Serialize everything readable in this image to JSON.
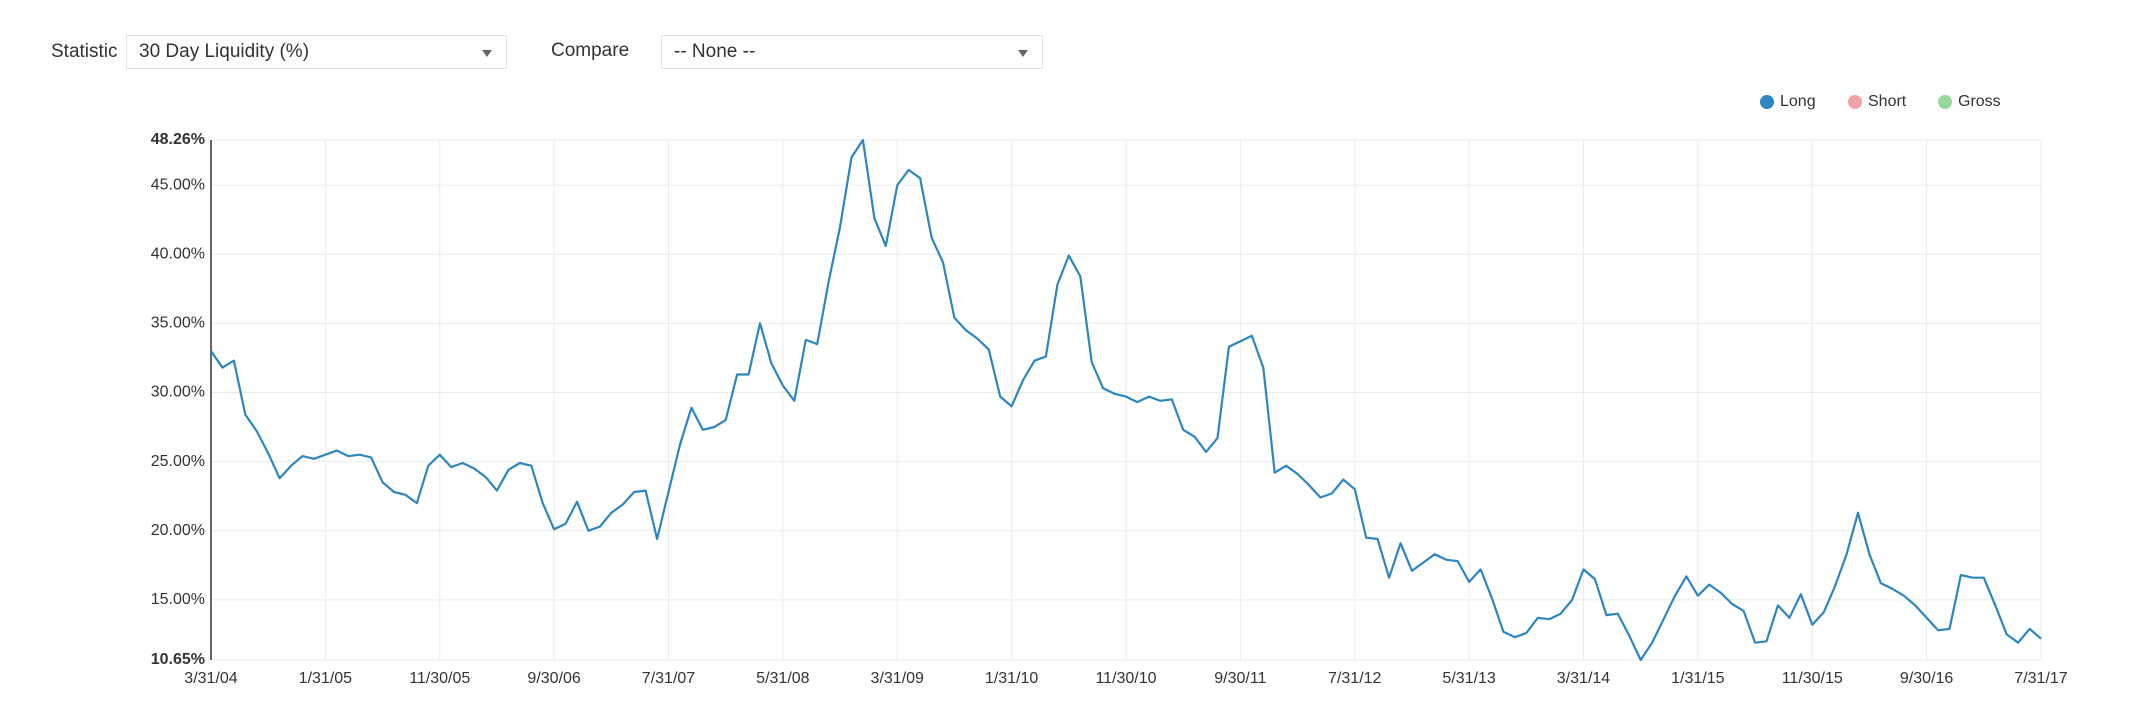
{
  "controls": {
    "statistic_label": "Statistic",
    "statistic_value": "30 Day Liquidity (%)",
    "compare_label": "Compare",
    "compare_value": "-- None --"
  },
  "chart_data": {
    "type": "line",
    "categories": [
      "3/31/04",
      null,
      null,
      null,
      null,
      null,
      null,
      null,
      null,
      null,
      "1/31/05",
      null,
      null,
      null,
      null,
      null,
      null,
      null,
      null,
      null,
      "11/30/05",
      null,
      null,
      null,
      null,
      null,
      null,
      null,
      null,
      null,
      "9/30/06",
      null,
      null,
      null,
      null,
      null,
      null,
      null,
      null,
      null,
      "7/31/07",
      null,
      null,
      null,
      null,
      null,
      null,
      null,
      null,
      null,
      "5/31/08",
      null,
      null,
      null,
      null,
      null,
      null,
      null,
      null,
      null,
      "3/31/09",
      null,
      null,
      null,
      null,
      null,
      null,
      null,
      null,
      null,
      "1/31/10",
      null,
      null,
      null,
      null,
      null,
      null,
      null,
      null,
      null,
      "11/30/10",
      null,
      null,
      null,
      null,
      null,
      null,
      null,
      null,
      null,
      "9/30/11",
      null,
      null,
      null,
      null,
      null,
      null,
      null,
      null,
      null,
      "7/31/12",
      null,
      null,
      null,
      null,
      null,
      null,
      null,
      null,
      null,
      "5/31/13",
      null,
      null,
      null,
      null,
      null,
      null,
      null,
      null,
      null,
      "3/31/14",
      null,
      null,
      null,
      null,
      null,
      null,
      null,
      null,
      null,
      "1/31/15",
      null,
      null,
      null,
      null,
      null,
      null,
      null,
      null,
      null,
      "11/30/15",
      null,
      null,
      null,
      null,
      null,
      null,
      null,
      null,
      null,
      "9/30/16",
      null,
      null,
      null,
      null,
      null,
      null,
      null,
      null,
      null,
      "7/31/17"
    ],
    "series": [
      {
        "name": "Long",
        "color": "#2e86c1",
        "visible": true,
        "values": [
          33.0,
          31.8,
          32.3,
          28.4,
          27.2,
          25.6,
          23.8,
          24.7,
          25.4,
          25.2,
          25.5,
          25.8,
          25.4,
          25.5,
          25.3,
          23.5,
          22.8,
          22.6,
          22.0,
          24.7,
          25.5,
          24.6,
          24.9,
          24.5,
          23.9,
          22.9,
          24.4,
          24.9,
          24.7,
          22.0,
          20.1,
          20.5,
          22.1,
          20.0,
          20.3,
          21.3,
          21.9,
          22.8,
          22.9,
          19.4,
          22.8,
          26.2,
          28.9,
          27.3,
          27.5,
          28.0,
          31.3,
          31.3,
          35.0,
          32.1,
          30.5,
          29.4,
          33.8,
          33.5,
          38.0,
          42.0,
          47.0,
          48.26,
          42.6,
          40.6,
          45.0,
          46.1,
          45.5,
          41.2,
          39.4,
          35.4,
          34.5,
          33.9,
          33.1,
          29.7,
          29.0,
          30.9,
          32.3,
          32.6,
          37.8,
          39.9,
          38.4,
          32.2,
          30.3,
          29.9,
          29.7,
          29.3,
          29.7,
          29.4,
          29.5,
          27.3,
          26.8,
          25.7,
          26.7,
          33.3,
          33.7,
          34.1,
          31.8,
          24.2,
          24.7,
          24.1,
          23.3,
          22.4,
          22.7,
          23.7,
          23.0,
          19.5,
          19.4,
          16.6,
          19.1,
          17.1,
          17.7,
          18.3,
          17.9,
          17.8,
          16.3,
          17.2,
          15.1,
          12.7,
          12.3,
          12.6,
          13.7,
          13.6,
          14.0,
          15.0,
          17.2,
          16.5,
          13.9,
          14.0,
          12.4,
          10.65,
          11.9,
          13.6,
          15.3,
          16.7,
          15.3,
          16.1,
          15.5,
          14.7,
          14.2,
          11.9,
          12.0,
          14.6,
          13.7,
          15.4,
          13.2,
          14.1,
          16.0,
          18.3,
          21.3,
          18.3,
          16.2,
          15.8,
          15.3,
          14.6,
          13.7,
          12.8,
          12.9,
          16.8,
          16.6,
          16.6,
          14.6,
          12.5,
          11.9,
          12.9,
          12.2
        ]
      },
      {
        "name": "Short",
        "color": "#f0a3a3",
        "visible": false
      },
      {
        "name": "Gross",
        "color": "#9ad79a",
        "visible": false
      }
    ],
    "ylim": [
      10.65,
      48.26
    ],
    "yticks": [
      {
        "value": 10.65,
        "label": "10.65%"
      },
      {
        "value": 15,
        "label": "15.00%"
      },
      {
        "value": 20,
        "label": "20.00%"
      },
      {
        "value": 25,
        "label": "25.00%"
      },
      {
        "value": 30,
        "label": "30.00%"
      },
      {
        "value": 35,
        "label": "35.00%"
      },
      {
        "value": 40,
        "label": "40.00%"
      },
      {
        "value": 45,
        "label": "45.00%"
      },
      {
        "value": 48.26,
        "label": "48.26%"
      }
    ],
    "grid": true
  }
}
